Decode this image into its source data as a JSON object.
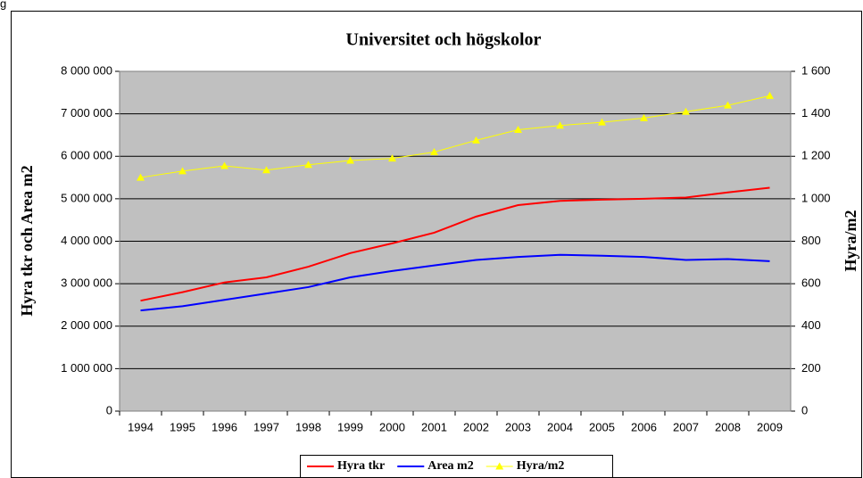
{
  "page_label": "g",
  "chart_data": {
    "type": "line",
    "title": "Universitet och högskolor",
    "y_label": "Hyra tkr och Area m2",
    "y2_label": "Hyra/m2",
    "categories": [
      "1994",
      "1995",
      "1996",
      "1997",
      "1998",
      "1999",
      "2000",
      "2001",
      "2002",
      "2003",
      "2004",
      "2005",
      "2006",
      "2007",
      "2008",
      "2009"
    ],
    "series": [
      {
        "name": "Hyra tkr",
        "color": "#ff0000",
        "marker": "none",
        "values": [
          2600000,
          2800000,
          3030000,
          3150000,
          3400000,
          3720000,
          3950000,
          4200000,
          4580000,
          4850000,
          4950000,
          4980000,
          5000000,
          5030000,
          5150000,
          5260000
        ]
      },
      {
        "name": "Area m2",
        "color": "#0000ff",
        "marker": "none",
        "values": [
          2370000,
          2470000,
          2620000,
          2770000,
          2920000,
          3150000,
          3300000,
          3430000,
          3560000,
          3630000,
          3680000,
          3660000,
          3630000,
          3560000,
          3580000,
          3530000
        ]
      },
      {
        "name": "Hyra/m2",
        "color": "#ffff00",
        "marker": "triangle",
        "axis": "y2",
        "values": [
          1100,
          1130,
          1155,
          1135,
          1160,
          1180,
          1190,
          1220,
          1275,
          1325,
          1345,
          1360,
          1380,
          1410,
          1440,
          1485
        ]
      }
    ],
    "ylim": [
      0,
      8000000
    ],
    "yticks": [
      0,
      {
        "value": 1000000,
        "label": "1 000 000"
      },
      {
        "value": 2000000,
        "label": "2 000 000"
      },
      {
        "value": 3000000,
        "label": "3 000 000"
      },
      {
        "value": 4000000,
        "label": "4 000 000"
      },
      {
        "value": 5000000,
        "label": "5 000 000"
      },
      {
        "value": 6000000,
        "label": "6 000 000"
      },
      {
        "value": 7000000,
        "label": "7 000 000"
      },
      {
        "value": 8000000,
        "label": "8 000 000"
      }
    ],
    "y2lim": [
      0,
      1600
    ],
    "y2ticks": [
      0,
      200,
      400,
      600,
      800,
      {
        "value": 1000,
        "label": "1 000"
      },
      {
        "value": 1200,
        "label": "1 200"
      },
      {
        "value": 1400,
        "label": "1 400"
      },
      {
        "value": 1600,
        "label": "1 600"
      }
    ],
    "grid": true,
    "plot_background": "#c0c0c0",
    "legend": "bottom"
  }
}
